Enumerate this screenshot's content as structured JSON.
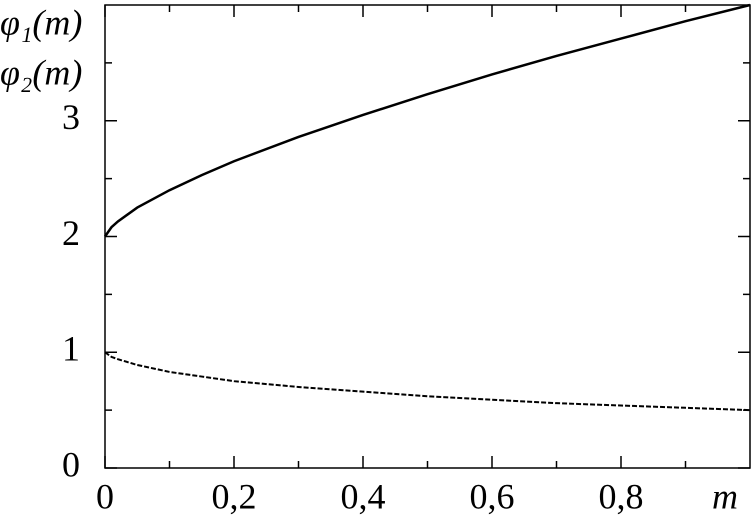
{
  "chart_data": {
    "type": "line",
    "x_label": "m",
    "x": [
      0,
      0.01,
      0.02,
      0.05,
      0.1,
      0.15,
      0.2,
      0.3,
      0.4,
      0.5,
      0.6,
      0.7,
      0.8,
      0.9,
      1
    ],
    "series": [
      {
        "name": "φ₁(m)",
        "color": "#000000",
        "dash": "solid",
        "values": [
          2,
          2.08,
          2.13,
          2.25,
          2.4,
          2.53,
          2.65,
          2.86,
          3.05,
          3.23,
          3.4,
          3.56,
          3.71,
          3.86,
          4.0
        ]
      },
      {
        "name": "φ₂(m)",
        "color": "#000000",
        "dash": "dashed",
        "values": [
          1,
          0.96,
          0.94,
          0.89,
          0.83,
          0.79,
          0.75,
          0.7,
          0.66,
          0.62,
          0.59,
          0.56,
          0.54,
          0.52,
          0.5
        ]
      }
    ],
    "xlim": [
      0,
      1
    ],
    "ylim": [
      0,
      4
    ],
    "xticks": [
      0,
      {
        "value": 0.2,
        "label": "0,2"
      },
      {
        "value": 0.4,
        "label": "0,4"
      },
      {
        "value": 0.6,
        "label": "0,6"
      },
      {
        "value": 0.8,
        "label": "0,8"
      }
    ],
    "x_minor_ticks": [
      0.1,
      0.3,
      0.5,
      0.7,
      0.9
    ],
    "yticks": [
      0,
      1,
      2,
      3
    ],
    "y_minor_ticks": [
      0.5,
      1.5,
      2.5,
      3.5
    ],
    "grid": false
  }
}
